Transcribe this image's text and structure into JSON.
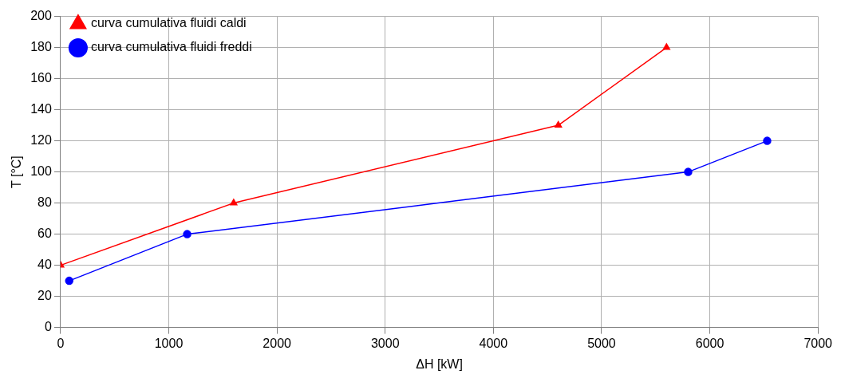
{
  "chart_data": {
    "type": "line",
    "xlabel": "ΔH [kW]",
    "ylabel": "T [°C]",
    "series": [
      {
        "name": "curva cumulativa fluidi caldi",
        "color": "#ff0000",
        "marker": "triangle",
        "x": [
          0,
          1600,
          4600,
          5600
        ],
        "values": [
          40,
          80,
          130,
          180
        ]
      },
      {
        "name": "curva cumulativa fluidi freddi",
        "color": "#0000ff",
        "marker": "circle",
        "x": [
          80,
          1170,
          5800,
          6530
        ],
        "values": [
          30,
          60,
          100,
          120
        ]
      }
    ],
    "xlim": [
      0,
      7000
    ],
    "xticks": [
      0,
      1000,
      2000,
      3000,
      4000,
      5000,
      6000,
      7000
    ],
    "ylim": [
      0,
      200
    ],
    "yticks": [
      0,
      20,
      40,
      60,
      80,
      100,
      120,
      140,
      160,
      180,
      200
    ],
    "grid": true,
    "legend": "top left"
  }
}
